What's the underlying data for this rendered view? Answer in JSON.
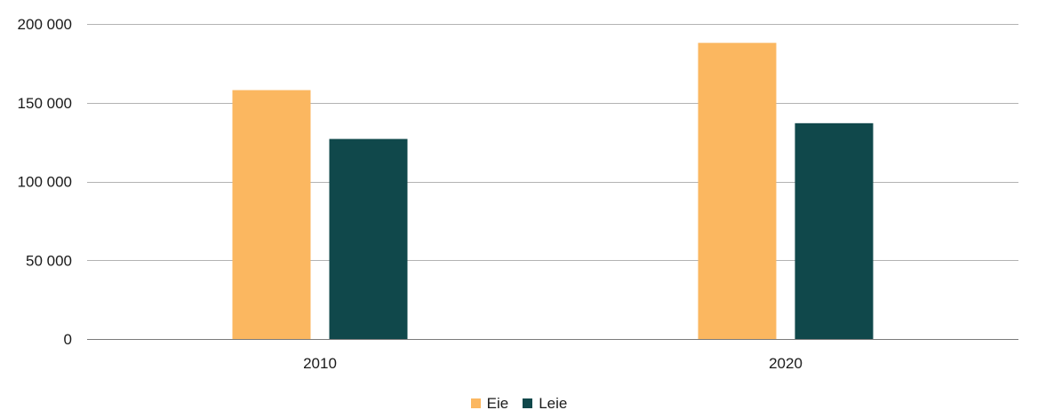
{
  "chart_data": {
    "type": "bar",
    "categories": [
      "2010",
      "2020"
    ],
    "series": [
      {
        "name": "Eie",
        "values": [
          158000,
          188000
        ],
        "color": "#FBB760"
      },
      {
        "name": "Leie",
        "values": [
          127000,
          137000
        ],
        "color": "#10484B"
      }
    ],
    "ylim": [
      0,
      200000
    ],
    "y_ticks": [
      0,
      50000,
      100000,
      150000,
      200000
    ],
    "y_tick_labels": [
      "0",
      "50 000",
      "100 000",
      "150 000",
      "200 000"
    ],
    "grid": true,
    "legend_position": "bottom-center",
    "colors": {
      "grid": "#b3b3b3",
      "axis": "#7a7a7a",
      "text": "#1a1a1a"
    }
  }
}
